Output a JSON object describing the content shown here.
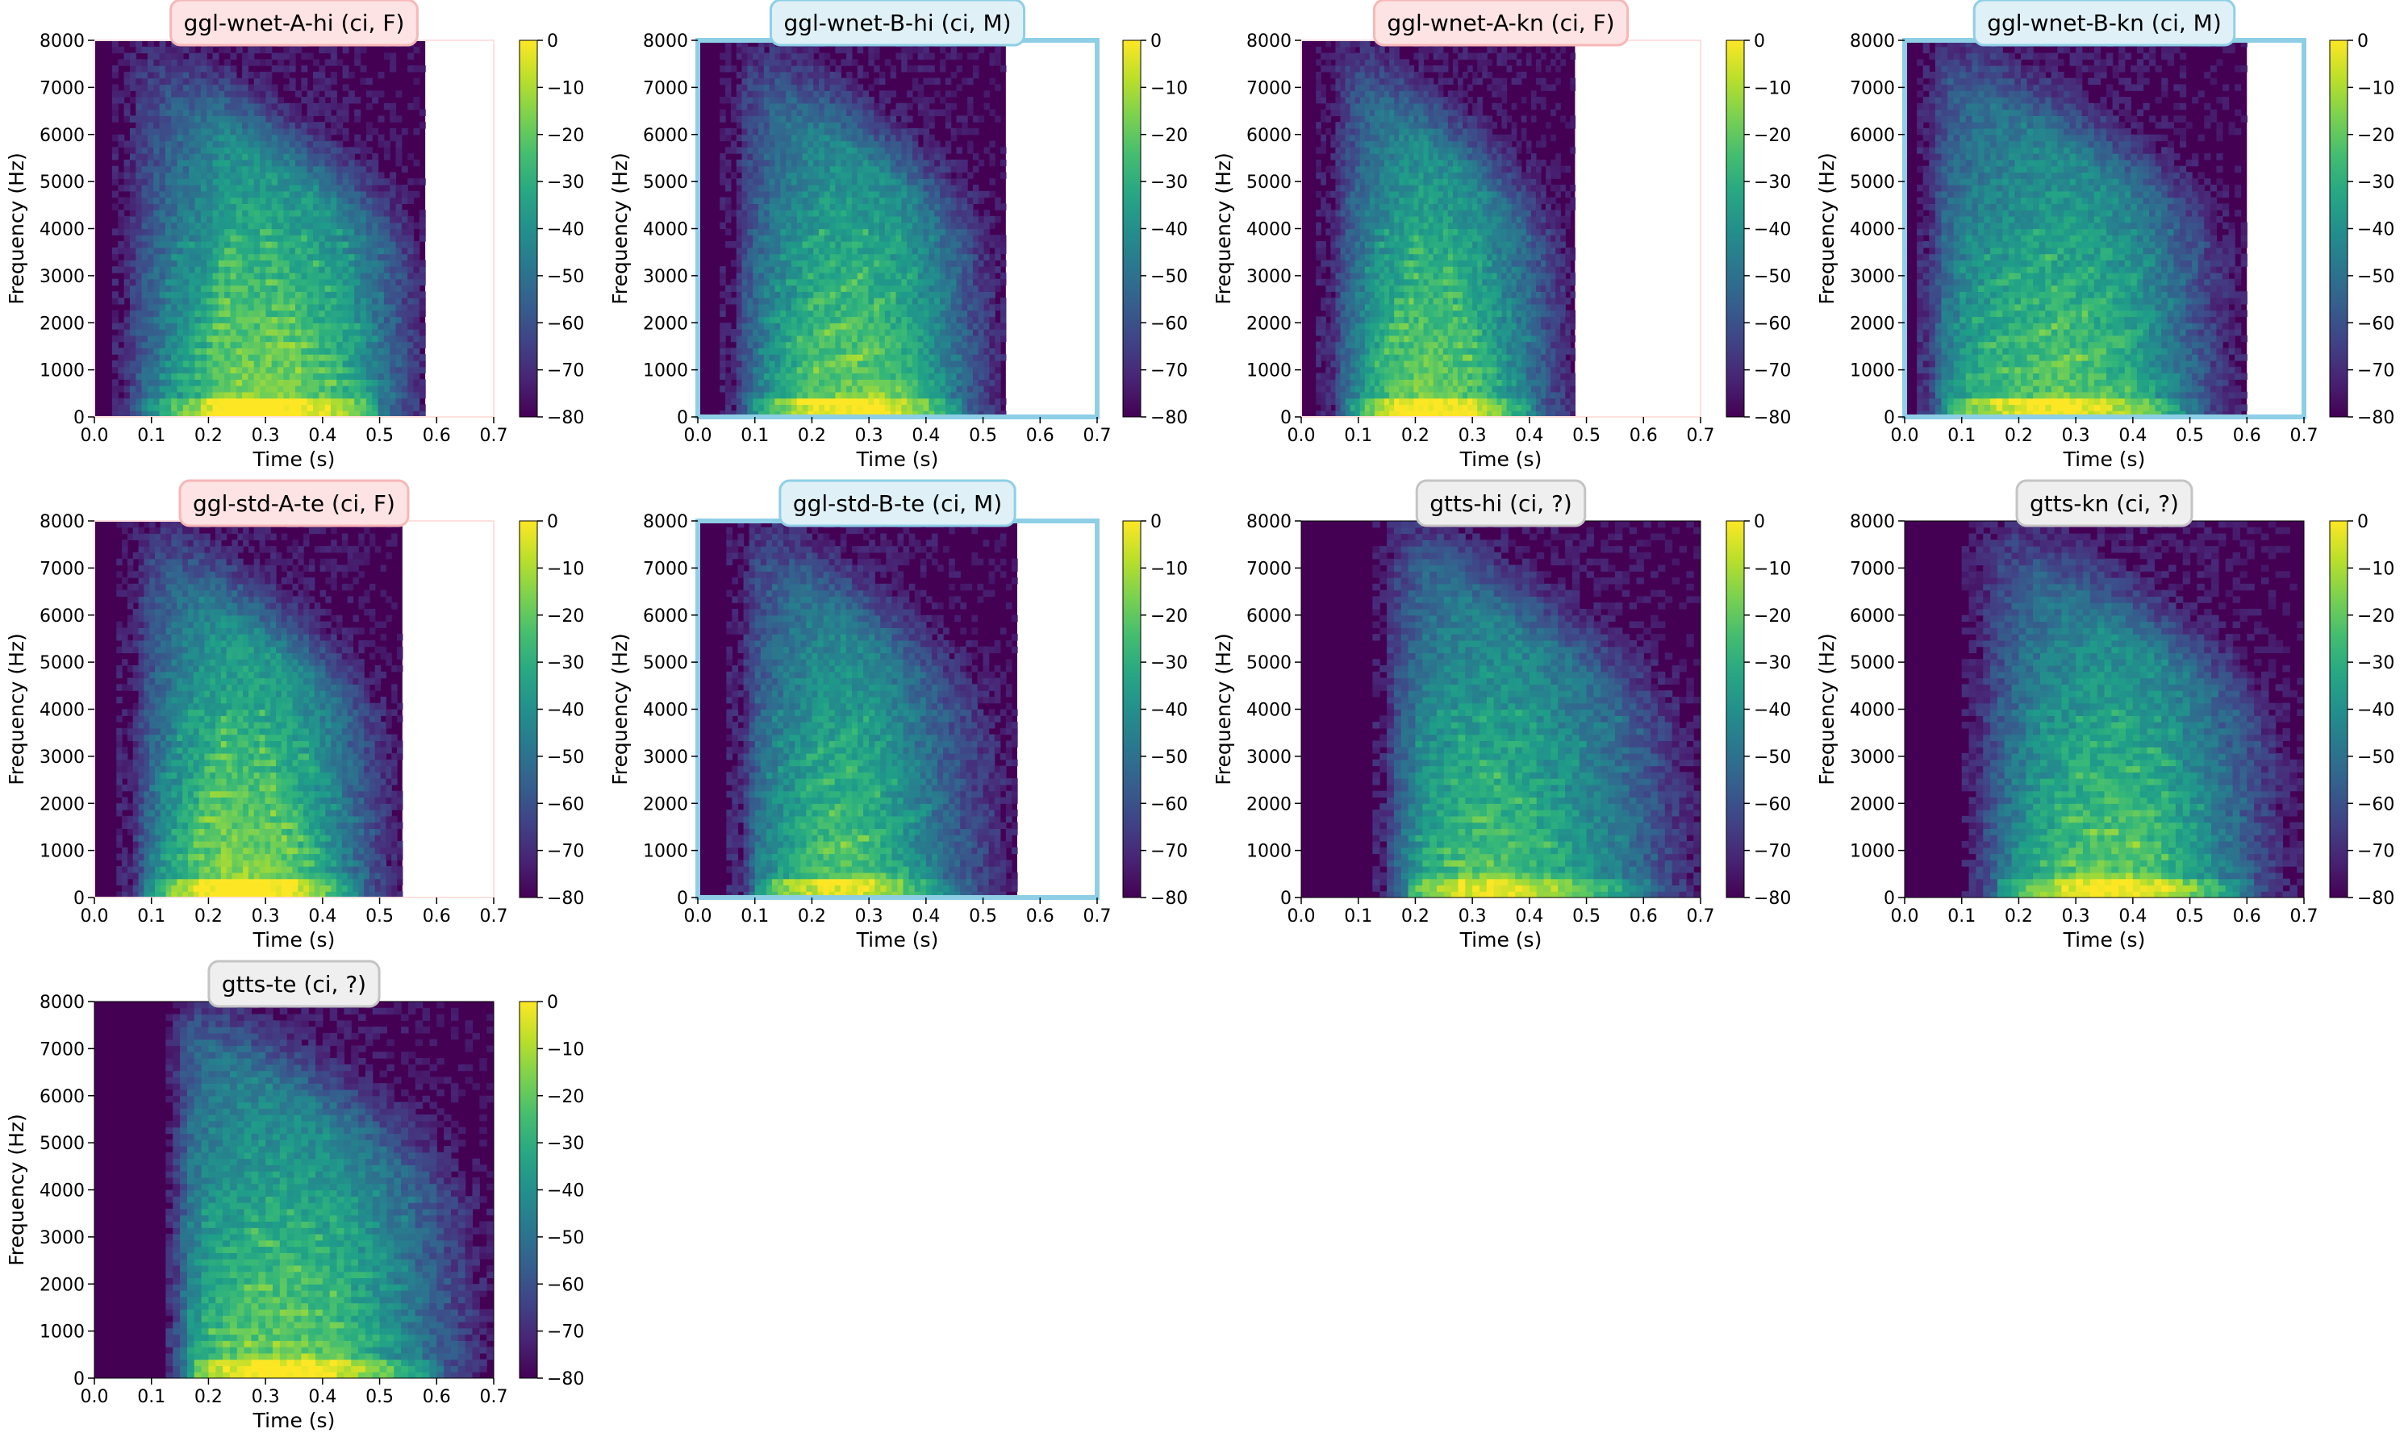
{
  "colors": {
    "female_bg": "#fde3e3",
    "female_edge": "#f7b7b7",
    "male_bg": "#dff0f7",
    "male_edge": "#8ecfe6",
    "unknown_bg": "#efefef",
    "unknown_edge": "#c4c4c4",
    "colormap": "viridis"
  },
  "chart_data": [
    {
      "type": "heatmap",
      "title": "ggl-wnet-A-hi (ci, F)",
      "category": "female",
      "duration": 0.58,
      "onset": 0.03,
      "profile": [
        [
          0.04,
          0.1
        ],
        [
          0.08,
          0.28
        ],
        [
          0.2,
          0.55
        ],
        [
          0.3,
          0.7
        ],
        [
          0.35,
          0.82
        ],
        [
          0.42,
          0.85
        ],
        [
          0.5,
          0.84
        ],
        [
          0.6,
          0.8
        ],
        [
          0.7,
          0.72
        ],
        [
          0.78,
          0.6
        ],
        [
          0.85,
          0.45
        ],
        [
          0.92,
          0.28
        ],
        [
          1,
          0.1
        ]
      ],
      "xlabel": "Time (s)",
      "ylabel": "Frequency (Hz)",
      "xlim": [
        0,
        0.7
      ],
      "ylim": [
        0,
        8000
      ],
      "xticks": [
        "0.0",
        "0.1",
        "0.2",
        "0.3",
        "0.4",
        "0.5",
        "0.6",
        "0.7"
      ],
      "yticks": [
        "0",
        "1000",
        "2000",
        "3000",
        "4000",
        "5000",
        "6000",
        "7000",
        "8000"
      ],
      "colorbar_ticks": [
        "0",
        "−10",
        "−20",
        "−30",
        "−40",
        "−50",
        "−60",
        "−70",
        "−80"
      ],
      "colorbar_range": [
        -80,
        0
      ]
    },
    {
      "type": "heatmap",
      "title": "ggl-wnet-B-hi (ci, M)",
      "category": "male",
      "duration": 0.54,
      "onset": 0.04,
      "profile": [
        [
          0.05,
          0.1
        ],
        [
          0.08,
          0.3
        ],
        [
          0.18,
          0.55
        ],
        [
          0.28,
          0.7
        ],
        [
          0.35,
          0.78
        ],
        [
          0.45,
          0.8
        ],
        [
          0.55,
          0.78
        ],
        [
          0.65,
          0.7
        ],
        [
          0.75,
          0.55
        ],
        [
          0.85,
          0.35
        ],
        [
          0.92,
          0.2
        ],
        [
          1,
          0.08
        ]
      ],
      "xlabel": "Time (s)",
      "ylabel": "Frequency (Hz)",
      "xlim": [
        0,
        0.7
      ],
      "ylim": [
        0,
        8000
      ],
      "xticks": [
        "0.0",
        "0.1",
        "0.2",
        "0.3",
        "0.4",
        "0.5",
        "0.6",
        "0.7"
      ],
      "yticks": [
        "0",
        "1000",
        "2000",
        "3000",
        "4000",
        "5000",
        "6000",
        "7000",
        "8000"
      ],
      "colorbar_ticks": [
        "0",
        "−10",
        "−20",
        "−30",
        "−40",
        "−50",
        "−60",
        "−70",
        "−80"
      ],
      "colorbar_range": [
        -80,
        0
      ]
    },
    {
      "type": "heatmap",
      "title": "ggl-wnet-A-kn (ci, F)",
      "category": "female",
      "duration": 0.48,
      "onset": 0.03,
      "profile": [
        [
          0.05,
          0.1
        ],
        [
          0.1,
          0.35
        ],
        [
          0.2,
          0.6
        ],
        [
          0.3,
          0.75
        ],
        [
          0.4,
          0.82
        ],
        [
          0.5,
          0.8
        ],
        [
          0.6,
          0.74
        ],
        [
          0.7,
          0.6
        ],
        [
          0.8,
          0.45
        ],
        [
          0.9,
          0.25
        ],
        [
          1,
          0.08
        ]
      ],
      "xlabel": "Time (s)",
      "ylabel": "Frequency (Hz)",
      "xlim": [
        0,
        0.7
      ],
      "ylim": [
        0,
        8000
      ],
      "xticks": [
        "0.0",
        "0.1",
        "0.2",
        "0.3",
        "0.4",
        "0.5",
        "0.6",
        "0.7"
      ],
      "yticks": [
        "0",
        "1000",
        "2000",
        "3000",
        "4000",
        "5000",
        "6000",
        "7000",
        "8000"
      ],
      "colorbar_ticks": [
        "0",
        "−10",
        "−20",
        "−30",
        "−40",
        "−50",
        "−60",
        "−70",
        "−80"
      ],
      "colorbar_range": [
        -80,
        0
      ]
    },
    {
      "type": "heatmap",
      "title": "ggl-wnet-B-kn (ci, M)",
      "category": "male",
      "duration": 0.6,
      "onset": 0.02,
      "profile": [
        [
          0.04,
          0.15
        ],
        [
          0.08,
          0.45
        ],
        [
          0.15,
          0.6
        ],
        [
          0.25,
          0.7
        ],
        [
          0.35,
          0.75
        ],
        [
          0.45,
          0.78
        ],
        [
          0.55,
          0.74
        ],
        [
          0.65,
          0.65
        ],
        [
          0.75,
          0.5
        ],
        [
          0.85,
          0.3
        ],
        [
          0.93,
          0.15
        ],
        [
          1,
          0.06
        ]
      ],
      "xlabel": "Time (s)",
      "ylabel": "Frequency (Hz)",
      "xlim": [
        0,
        0.7
      ],
      "ylim": [
        0,
        8000
      ],
      "xticks": [
        "0.0",
        "0.1",
        "0.2",
        "0.3",
        "0.4",
        "0.5",
        "0.6",
        "0.7"
      ],
      "yticks": [
        "0",
        "1000",
        "2000",
        "3000",
        "4000",
        "5000",
        "6000",
        "7000",
        "8000"
      ],
      "colorbar_ticks": [
        "0",
        "−10",
        "−20",
        "−30",
        "−40",
        "−50",
        "−60",
        "−70",
        "−80"
      ],
      "colorbar_range": [
        -80,
        0
      ]
    },
    {
      "type": "heatmap",
      "title": "ggl-std-A-te (ci, F)",
      "category": "female",
      "duration": 0.54,
      "onset": 0.04,
      "profile": [
        [
          0.05,
          0.1
        ],
        [
          0.1,
          0.35
        ],
        [
          0.2,
          0.62
        ],
        [
          0.3,
          0.78
        ],
        [
          0.38,
          0.85
        ],
        [
          0.45,
          0.86
        ],
        [
          0.55,
          0.82
        ],
        [
          0.65,
          0.72
        ],
        [
          0.75,
          0.55
        ],
        [
          0.85,
          0.35
        ],
        [
          0.93,
          0.18
        ],
        [
          1,
          0.06
        ]
      ],
      "xlabel": "Time (s)",
      "ylabel": "Frequency (Hz)",
      "xlim": [
        0,
        0.7
      ],
      "ylim": [
        0,
        8000
      ],
      "xticks": [
        "0.0",
        "0.1",
        "0.2",
        "0.3",
        "0.4",
        "0.5",
        "0.6",
        "0.7"
      ],
      "yticks": [
        "0",
        "1000",
        "2000",
        "3000",
        "4000",
        "5000",
        "6000",
        "7000",
        "8000"
      ],
      "colorbar_ticks": [
        "0",
        "−10",
        "−20",
        "−30",
        "−40",
        "−50",
        "−60",
        "−70",
        "−80"
      ],
      "colorbar_range": [
        -80,
        0
      ]
    },
    {
      "type": "heatmap",
      "title": "ggl-std-B-te (ci, M)",
      "category": "male",
      "duration": 0.56,
      "onset": 0.05,
      "profile": [
        [
          0.05,
          0.12
        ],
        [
          0.1,
          0.4
        ],
        [
          0.2,
          0.6
        ],
        [
          0.3,
          0.72
        ],
        [
          0.4,
          0.76
        ],
        [
          0.5,
          0.72
        ],
        [
          0.6,
          0.6
        ],
        [
          0.7,
          0.45
        ],
        [
          0.8,
          0.3
        ],
        [
          0.9,
          0.18
        ],
        [
          1,
          0.06
        ]
      ],
      "xlabel": "Time (s)",
      "ylabel": "Frequency (Hz)",
      "xlim": [
        0,
        0.7
      ],
      "ylim": [
        0,
        8000
      ],
      "xticks": [
        "0.0",
        "0.1",
        "0.2",
        "0.3",
        "0.4",
        "0.5",
        "0.6",
        "0.7"
      ],
      "yticks": [
        "0",
        "1000",
        "2000",
        "3000",
        "4000",
        "5000",
        "6000",
        "7000",
        "8000"
      ],
      "colorbar_ticks": [
        "0",
        "−10",
        "−20",
        "−30",
        "−40",
        "−50",
        "−60",
        "−70",
        "−80"
      ],
      "colorbar_range": [
        -80,
        0
      ]
    },
    {
      "type": "heatmap",
      "title": "gtts-hi (ci, ?)",
      "category": "unknown",
      "duration": 0.7,
      "onset": 0.13,
      "profile": [
        [
          0.02,
          0.1
        ],
        [
          0.08,
          0.4
        ],
        [
          0.15,
          0.62
        ],
        [
          0.25,
          0.72
        ],
        [
          0.35,
          0.75
        ],
        [
          0.45,
          0.72
        ],
        [
          0.55,
          0.65
        ],
        [
          0.65,
          0.55
        ],
        [
          0.75,
          0.45
        ],
        [
          0.85,
          0.3
        ],
        [
          0.92,
          0.18
        ],
        [
          1,
          0.08
        ]
      ],
      "xlabel": "Time (s)",
      "ylabel": "Frequency (Hz)",
      "xlim": [
        0,
        0.7
      ],
      "ylim": [
        0,
        8000
      ],
      "xticks": [
        "0.0",
        "0.1",
        "0.2",
        "0.3",
        "0.4",
        "0.5",
        "0.6",
        "0.7"
      ],
      "yticks": [
        "0",
        "1000",
        "2000",
        "3000",
        "4000",
        "5000",
        "6000",
        "7000",
        "8000"
      ],
      "colorbar_ticks": [
        "0",
        "−10",
        "−20",
        "−30",
        "−40",
        "−50",
        "−60",
        "−70",
        "−80"
      ],
      "colorbar_range": [
        -80,
        0
      ]
    },
    {
      "type": "heatmap",
      "title": "gtts-kn (ci, ?)",
      "category": "unknown",
      "duration": 0.7,
      "onset": 0.1,
      "profile": [
        [
          0.03,
          0.1
        ],
        [
          0.1,
          0.35
        ],
        [
          0.2,
          0.6
        ],
        [
          0.3,
          0.72
        ],
        [
          0.4,
          0.78
        ],
        [
          0.5,
          0.78
        ],
        [
          0.6,
          0.7
        ],
        [
          0.7,
          0.55
        ],
        [
          0.8,
          0.38
        ],
        [
          0.88,
          0.22
        ],
        [
          0.95,
          0.1
        ],
        [
          1,
          0.05
        ]
      ],
      "xlabel": "Time (s)",
      "ylabel": "Frequency (Hz)",
      "xlim": [
        0,
        0.7
      ],
      "ylim": [
        0,
        8000
      ],
      "xticks": [
        "0.0",
        "0.1",
        "0.2",
        "0.3",
        "0.4",
        "0.5",
        "0.6",
        "0.7"
      ],
      "yticks": [
        "0",
        "1000",
        "2000",
        "3000",
        "4000",
        "5000",
        "6000",
        "7000",
        "8000"
      ],
      "colorbar_ticks": [
        "0",
        "−10",
        "−20",
        "−30",
        "−40",
        "−50",
        "−60",
        "−70",
        "−80"
      ],
      "colorbar_range": [
        -80,
        0
      ]
    },
    {
      "type": "heatmap",
      "title": "gtts-te (ci, ?)",
      "category": "unknown",
      "duration": 0.7,
      "onset": 0.12,
      "profile": [
        [
          0.03,
          0.15
        ],
        [
          0.08,
          0.55
        ],
        [
          0.15,
          0.7
        ],
        [
          0.25,
          0.78
        ],
        [
          0.35,
          0.8
        ],
        [
          0.45,
          0.78
        ],
        [
          0.55,
          0.72
        ],
        [
          0.65,
          0.6
        ],
        [
          0.75,
          0.45
        ],
        [
          0.85,
          0.3
        ],
        [
          0.93,
          0.15
        ],
        [
          1,
          0.06
        ]
      ],
      "xlabel": "Time (s)",
      "ylabel": "Frequency (Hz)",
      "xlim": [
        0,
        0.7
      ],
      "ylim": [
        0,
        8000
      ],
      "xticks": [
        "0.0",
        "0.1",
        "0.2",
        "0.3",
        "0.4",
        "0.5",
        "0.6",
        "0.7"
      ],
      "yticks": [
        "0",
        "1000",
        "2000",
        "3000",
        "4000",
        "5000",
        "6000",
        "7000",
        "8000"
      ],
      "colorbar_ticks": [
        "0",
        "−10",
        "−20",
        "−30",
        "−40",
        "−50",
        "−60",
        "−70",
        "−80"
      ],
      "colorbar_range": [
        -80,
        0
      ]
    }
  ]
}
